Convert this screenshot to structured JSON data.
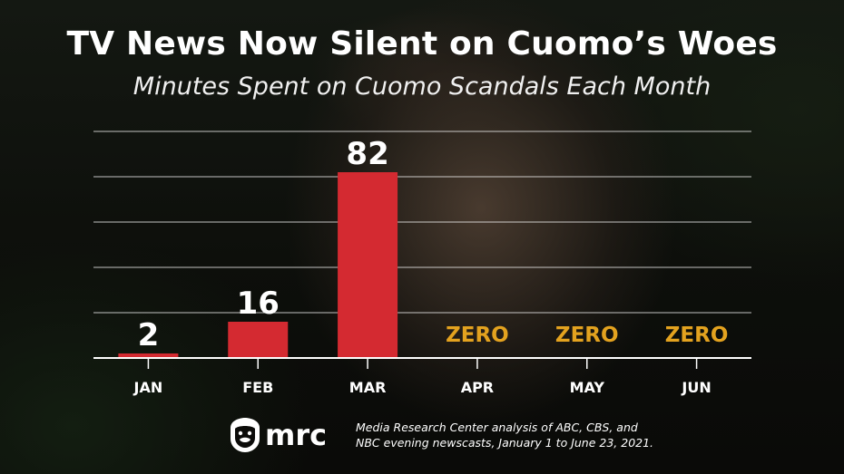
{
  "chart_data": {
    "type": "bar",
    "title": "TV News Now Silent on Cuomo’s Woes",
    "subtitle": "Minutes Spent on Cuomo Scandals Each Month",
    "categories": [
      "JAN",
      "FEB",
      "MAR",
      "APR",
      "MAY",
      "JUN"
    ],
    "values": [
      2,
      16,
      82,
      0,
      0,
      0
    ],
    "data_labels": [
      "2",
      "16",
      "82",
      "ZERO",
      "ZERO",
      "ZERO"
    ],
    "xlabel": "",
    "ylabel": "",
    "ylim": [
      0,
      100
    ],
    "grid": true,
    "colors": {
      "bar": "#d42a31",
      "zero_label": "#e3a21f",
      "grid": "#ffffff"
    }
  },
  "footer": {
    "logo_text": "mrc",
    "source": "Media Research Center analysis of ABC, CBS, and NBC evening newscasts, January 1 to June 23, 2021."
  }
}
